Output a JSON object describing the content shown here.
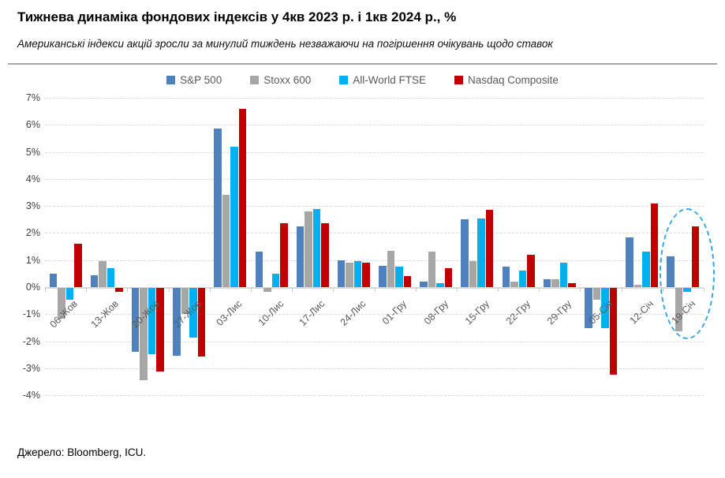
{
  "header": {
    "title": "Тижнева динаміка фондових індексів у 4кв 2023 р. і 1кв 2024 р., %",
    "subtitle": "Американські індекси акцій зросли за минулий тиждень незважаючи на погіршення очікувань щодо ставок"
  },
  "footer": {
    "source": "Джерело: Bloomberg, ICU."
  },
  "chart_data": {
    "type": "bar",
    "title": "Тижнева динаміка фондових індексів у 4кв 2023 р. і 1кв 2024 р., %",
    "xlabel": "",
    "ylabel": "",
    "ylim": [
      -4,
      7
    ],
    "grid": "horizontal-dashed",
    "legend_position": "top-center",
    "yticks": [
      "7%",
      "6%",
      "5%",
      "4%",
      "3%",
      "2%",
      "1%",
      "0%",
      "-1%",
      "-2%",
      "-3%",
      "-4%"
    ],
    "categories": [
      "06-Жов",
      "13-Жов",
      "20-Жов",
      "27-Жов",
      "03-Лис",
      "10-Лис",
      "17-Лис",
      "24-Лис",
      "01-Гру",
      "08-Гру",
      "15-Гру",
      "22-Гру",
      "29-Гру",
      "05-Січ",
      "12-Січ",
      "19-Січ"
    ],
    "series": [
      {
        "name": "S&P 500",
        "color": "#4f81bd",
        "values": [
          0.5,
          0.45,
          -2.35,
          -2.5,
          5.85,
          1.3,
          2.25,
          1.0,
          0.8,
          0.2,
          2.5,
          0.75,
          0.3,
          -1.5,
          1.85,
          1.15
        ]
      },
      {
        "name": "Stoxx 600",
        "color": "#a6a6a6",
        "values": [
          -1.15,
          0.95,
          -3.4,
          -0.95,
          3.4,
          -0.15,
          2.8,
          0.9,
          1.35,
          1.3,
          0.95,
          0.2,
          0.3,
          -0.45,
          0.1,
          -1.6
        ]
      },
      {
        "name": "All-World FTSE",
        "color": "#00b0f0",
        "values": [
          -0.45,
          0.7,
          -2.45,
          -1.85,
          5.2,
          0.5,
          2.9,
          0.95,
          0.75,
          0.15,
          2.55,
          0.6,
          0.9,
          -1.5,
          1.3,
          -0.15
        ]
      },
      {
        "name": "Nasdaq Composite",
        "color": "#c00000",
        "values": [
          1.6,
          -0.15,
          -3.1,
          -2.55,
          6.6,
          2.35,
          2.35,
          0.9,
          0.4,
          0.7,
          2.85,
          1.2,
          0.15,
          -3.2,
          3.1,
          2.25
        ]
      }
    ],
    "annotations": [
      {
        "type": "ellipse",
        "style": "dashed",
        "color": "#35a7e0",
        "target_category": "19-Січ",
        "note": "highlight of the most recent week"
      }
    ]
  }
}
